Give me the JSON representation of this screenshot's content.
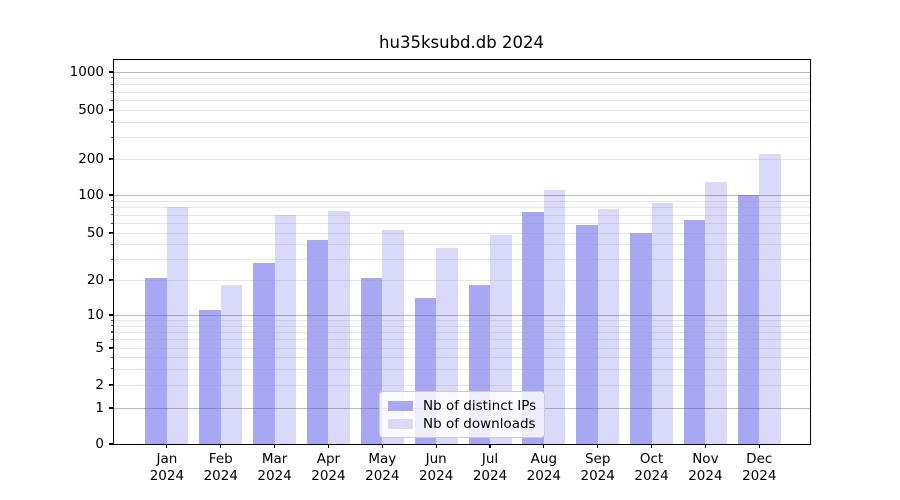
{
  "chart_data": {
    "type": "bar",
    "title": "hu35ksubd.db 2024",
    "categories_line1": [
      "Jan",
      "Feb",
      "Mar",
      "Apr",
      "May",
      "Jun",
      "Jul",
      "Aug",
      "Sep",
      "Oct",
      "Nov",
      "Dec"
    ],
    "categories_line2": "2024",
    "series": [
      {
        "name": "Nb of distinct IPs",
        "color": "#a7a7f3",
        "values": [
          21,
          11,
          28,
          44,
          21,
          14,
          18,
          74,
          58,
          50,
          63,
          100
        ]
      },
      {
        "name": "Nb of downloads",
        "color": "#d9d9f9",
        "values": [
          81,
          18,
          70,
          75,
          53,
          37,
          48,
          110,
          78,
          87,
          129,
          218
        ]
      }
    ],
    "yscale": "symlog",
    "y_tick_values": [
      0,
      1,
      2,
      5,
      10,
      20,
      50,
      100,
      200,
      500,
      1000
    ],
    "y_minor_values": [
      2,
      3,
      4,
      5,
      6,
      7,
      8,
      9,
      20,
      30,
      40,
      50,
      60,
      70,
      80,
      90,
      200,
      300,
      400,
      500,
      600,
      700,
      800,
      900
    ],
    "y_major_grid_values": [
      1,
      10,
      100,
      1000
    ],
    "ylim": [
      0,
      1300
    ],
    "grid": true,
    "legend_position": "lower center"
  },
  "colors": {
    "major_grid": "rgba(100,100,100,0.45)",
    "minor_grid": "rgba(160,160,160,0.28)",
    "axis": "#000000",
    "background": "#ffffff"
  }
}
